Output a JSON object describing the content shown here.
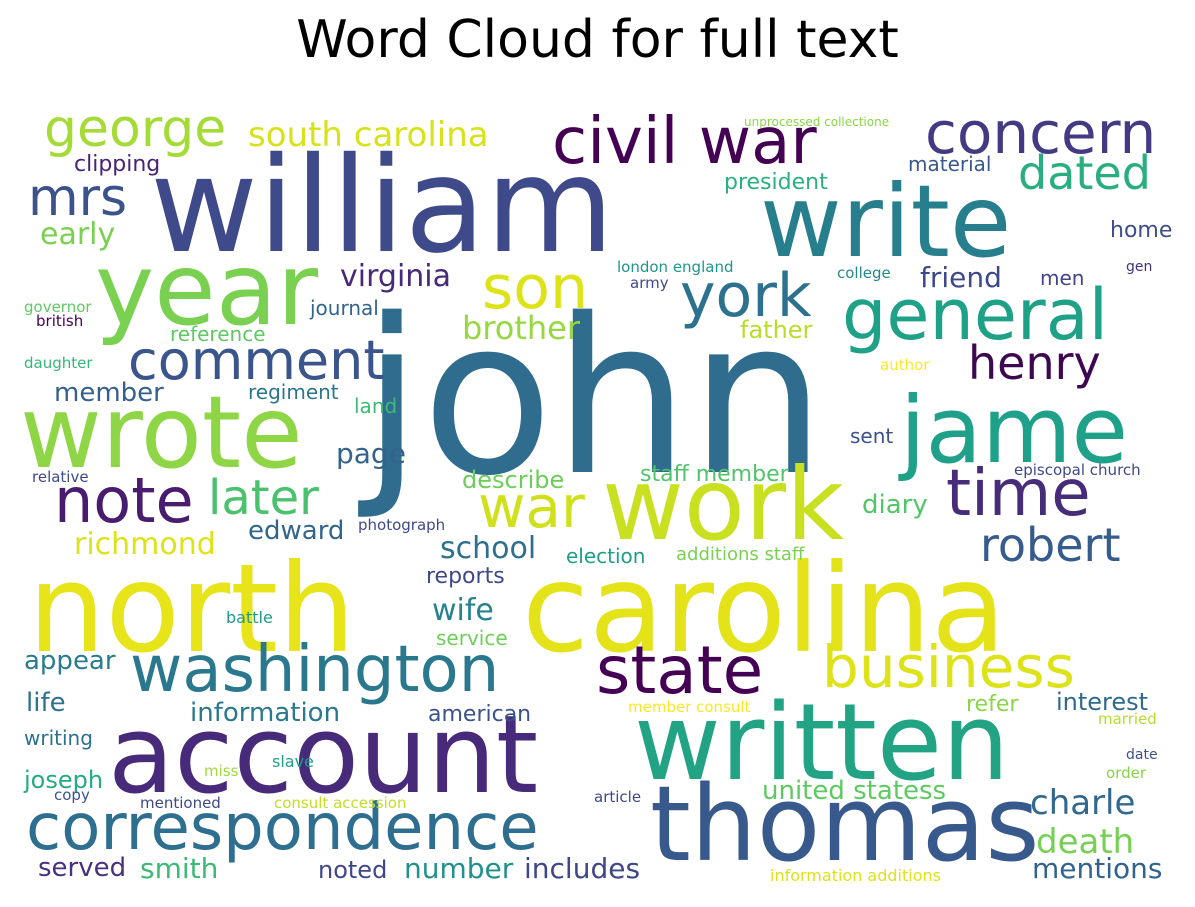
{
  "title": "Word Cloud for full text",
  "words": [
    {
      "text": "john",
      "color": "#2f6c8e"
    },
    {
      "text": "william",
      "color": "#3e4a89"
    },
    {
      "text": "north",
      "color": "#e7e419"
    },
    {
      "text": "carolina",
      "color": "#e4e31a"
    },
    {
      "text": "account",
      "color": "#482a7a"
    },
    {
      "text": "written",
      "color": "#22a384"
    },
    {
      "text": "thomas",
      "color": "#38598c"
    },
    {
      "text": "correspondence",
      "color": "#2e6e8e"
    },
    {
      "text": "write",
      "color": "#277f8e"
    },
    {
      "text": "year",
      "color": "#7ad151"
    },
    {
      "text": "wrote",
      "color": "#8ed645"
    },
    {
      "text": "work",
      "color": "#c8e020"
    },
    {
      "text": "jame",
      "color": "#1fa088"
    },
    {
      "text": "washington",
      "color": "#2a788e"
    },
    {
      "text": "state",
      "color": "#440154"
    },
    {
      "text": "business",
      "color": "#dde318"
    },
    {
      "text": "civil war",
      "color": "#440154"
    },
    {
      "text": "general",
      "color": "#1fa187"
    },
    {
      "text": "concern",
      "color": "#443a83"
    },
    {
      "text": "george",
      "color": "#a5db36"
    },
    {
      "text": "comment",
      "color": "#3a548c"
    },
    {
      "text": "son",
      "color": "#dde318"
    },
    {
      "text": "york",
      "color": "#2c718e"
    },
    {
      "text": "time",
      "color": "#472c7a"
    },
    {
      "text": "note",
      "color": "#481c6e"
    },
    {
      "text": "robert",
      "color": "#365c8d"
    },
    {
      "text": "war",
      "color": "#d0e11c"
    },
    {
      "text": "later",
      "color": "#4ac16d"
    },
    {
      "text": "mrs",
      "color": "#3b528b"
    },
    {
      "text": "henry",
      "color": "#3e0751"
    },
    {
      "text": "dated",
      "color": "#29af7f"
    },
    {
      "text": "south carolina",
      "color": "#d8e219"
    },
    {
      "text": "charle",
      "color": "#31688e"
    },
    {
      "text": "death",
      "color": "#75d054"
    },
    {
      "text": "early",
      "color": "#7ad151"
    },
    {
      "text": "brother",
      "color": "#95d840"
    },
    {
      "text": "virginia",
      "color": "#482878"
    },
    {
      "text": "richmond",
      "color": "#dde318"
    },
    {
      "text": "school",
      "color": "#2e6e8e"
    },
    {
      "text": "wife",
      "color": "#26828e"
    },
    {
      "text": "mentions",
      "color": "#33638d"
    },
    {
      "text": "includes",
      "color": "#3f4788"
    },
    {
      "text": "number",
      "color": "#21918c"
    },
    {
      "text": "smith",
      "color": "#3bbb75"
    },
    {
      "text": "information",
      "color": "#29798e"
    },
    {
      "text": "united statess",
      "color": "#5ec962"
    },
    {
      "text": "diary",
      "color": "#52c569"
    },
    {
      "text": "edward",
      "color": "#32658e"
    },
    {
      "text": "page",
      "color": "#33638d"
    },
    {
      "text": "member",
      "color": "#355f8d"
    },
    {
      "text": "appear",
      "color": "#287c8e"
    },
    {
      "text": "life",
      "color": "#2c728e"
    },
    {
      "text": "interest",
      "color": "#306a8e"
    },
    {
      "text": "friend",
      "color": "#3e4989"
    },
    {
      "text": "describe",
      "color": "#6ccd5a"
    },
    {
      "text": "staff member",
      "color": "#4fc46a"
    },
    {
      "text": "father",
      "color": "#b8de29"
    },
    {
      "text": "reports",
      "color": "#3f4889"
    },
    {
      "text": "american",
      "color": "#3b528b"
    },
    {
      "text": "served",
      "color": "#46327e"
    },
    {
      "text": "noted",
      "color": "#404688"
    },
    {
      "text": "joseph",
      "color": "#25ab82"
    },
    {
      "text": "clipping",
      "color": "#482374"
    },
    {
      "text": "president",
      "color": "#2ab07f"
    },
    {
      "text": "material",
      "color": "#37598c"
    },
    {
      "text": "home",
      "color": "#3d4e8a"
    },
    {
      "text": "men",
      "color": "#414487"
    },
    {
      "text": "journal",
      "color": "#32648e"
    },
    {
      "text": "regiment",
      "color": "#2a768e"
    },
    {
      "text": "reference",
      "color": "#5ec962"
    },
    {
      "text": "land",
      "color": "#3bbb75"
    },
    {
      "text": "sent",
      "color": "#3b528b"
    },
    {
      "text": "refer",
      "color": "#8bd646"
    },
    {
      "text": "writing",
      "color": "#2d708e"
    },
    {
      "text": "service",
      "color": "#6ece58"
    },
    {
      "text": "election",
      "color": "#1f9e89"
    },
    {
      "text": "additions staff",
      "color": "#7ad151"
    },
    {
      "text": "photograph",
      "color": "#3e4989"
    },
    {
      "text": "battle",
      "color": "#1f9a8a"
    },
    {
      "text": "london england",
      "color": "#1f958b"
    },
    {
      "text": "army",
      "color": "#3e4989"
    },
    {
      "text": "college",
      "color": "#24868e"
    },
    {
      "text": "gen",
      "color": "#46327e"
    },
    {
      "text": "episcopal church",
      "color": "#3e4989"
    },
    {
      "text": "author",
      "color": "#fde725"
    },
    {
      "text": "governor",
      "color": "#5ec962"
    },
    {
      "text": "british",
      "color": "#440154"
    },
    {
      "text": "daughter",
      "color": "#35b779"
    },
    {
      "text": "relative",
      "color": "#3e4989"
    },
    {
      "text": "member consult",
      "color": "#fde725"
    },
    {
      "text": "married",
      "color": "#b5de2b"
    },
    {
      "text": "date",
      "color": "#3b528b"
    },
    {
      "text": "order",
      "color": "#86d549"
    },
    {
      "text": "miss",
      "color": "#a0da39"
    },
    {
      "text": "slave",
      "color": "#1f9e89"
    },
    {
      "text": "copy",
      "color": "#3b528b"
    },
    {
      "text": "mentioned",
      "color": "#3e4989"
    },
    {
      "text": "consult accession",
      "color": "#c2df23"
    },
    {
      "text": "article",
      "color": "#3e4989"
    },
    {
      "text": "information additions",
      "color": "#dde318"
    },
    {
      "text": "unprocessed collectione",
      "color": "#8bd646"
    }
  ]
}
